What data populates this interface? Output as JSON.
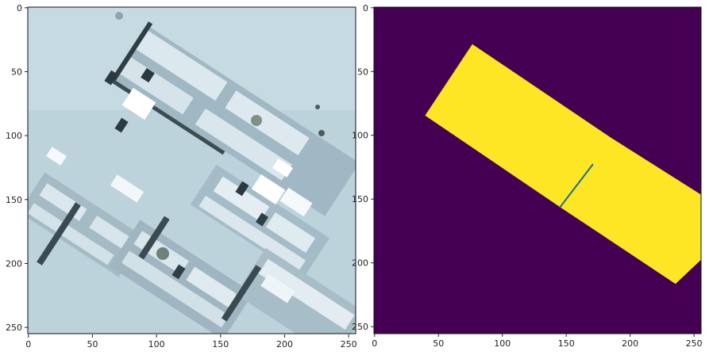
{
  "figure": {
    "panels": [
      {
        "name": "satellite-image",
        "kind": "image",
        "xticks": [
          "0",
          "50",
          "100",
          "150",
          "200",
          "250"
        ],
        "yticks": [
          "0",
          "50",
          "100",
          "150",
          "200",
          "250"
        ]
      },
      {
        "name": "building-mask",
        "kind": "mask",
        "xticks": [
          "0",
          "50",
          "100",
          "150",
          "200",
          "250"
        ],
        "yticks": [
          "0",
          "50",
          "100",
          "150",
          "200",
          "250"
        ]
      }
    ]
  },
  "chart_data": [
    {
      "type": "heatmap",
      "title": "",
      "xlabel": "",
      "ylabel": "",
      "xlim": [
        0,
        256
      ],
      "ylim": [
        256,
        0
      ],
      "content": "aerial satellite image"
    },
    {
      "type": "heatmap",
      "title": "",
      "xlabel": "",
      "ylabel": "",
      "xlim": [
        0,
        256
      ],
      "ylim": [
        256,
        0
      ],
      "colors": {
        "background": "#440154",
        "foreground": "#fde725"
      },
      "regions": [
        {
          "class": 1,
          "polygon": [
            [
              77,
              29
            ],
            [
              185,
              102
            ],
            [
              256,
              147
            ],
            [
              256,
              198
            ],
            [
              236,
              217
            ],
            [
              146,
              157
            ],
            [
              40,
              85
            ]
          ]
        }
      ]
    }
  ]
}
